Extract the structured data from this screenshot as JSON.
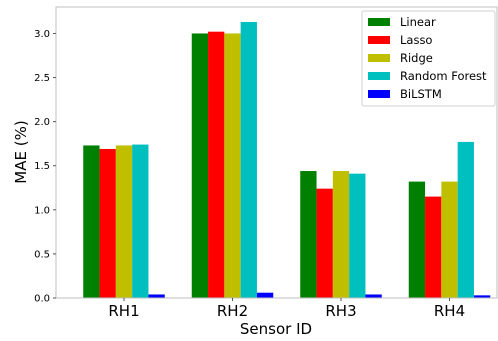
{
  "chart_data": {
    "type": "bar",
    "title": "",
    "xlabel": "Sensor ID",
    "ylabel": "MAE (%)",
    "categories": [
      "RH1",
      "RH2",
      "RH3",
      "RH4"
    ],
    "ylim": [
      0,
      3.3
    ],
    "yticks": [
      "0.0",
      "0.5",
      "1.0",
      "1.5",
      "2.0",
      "2.5",
      "3.0"
    ],
    "grid": false,
    "legend_position": "top-right",
    "series": [
      {
        "name": "Linear",
        "color": "#008000",
        "values": [
          1.73,
          3.0,
          1.44,
          1.32
        ]
      },
      {
        "name": "Lasso",
        "color": "#ff0000",
        "values": [
          1.69,
          3.02,
          1.24,
          1.15
        ]
      },
      {
        "name": "Ridge",
        "color": "#bfbf00",
        "values": [
          1.73,
          3.0,
          1.44,
          1.32
        ]
      },
      {
        "name": "Random Forest",
        "color": "#00bfbf",
        "values": [
          1.74,
          3.13,
          1.41,
          1.77
        ]
      },
      {
        "name": "BiLSTM",
        "color": "#0000ff",
        "values": [
          0.04,
          0.06,
          0.04,
          0.03
        ]
      }
    ]
  }
}
